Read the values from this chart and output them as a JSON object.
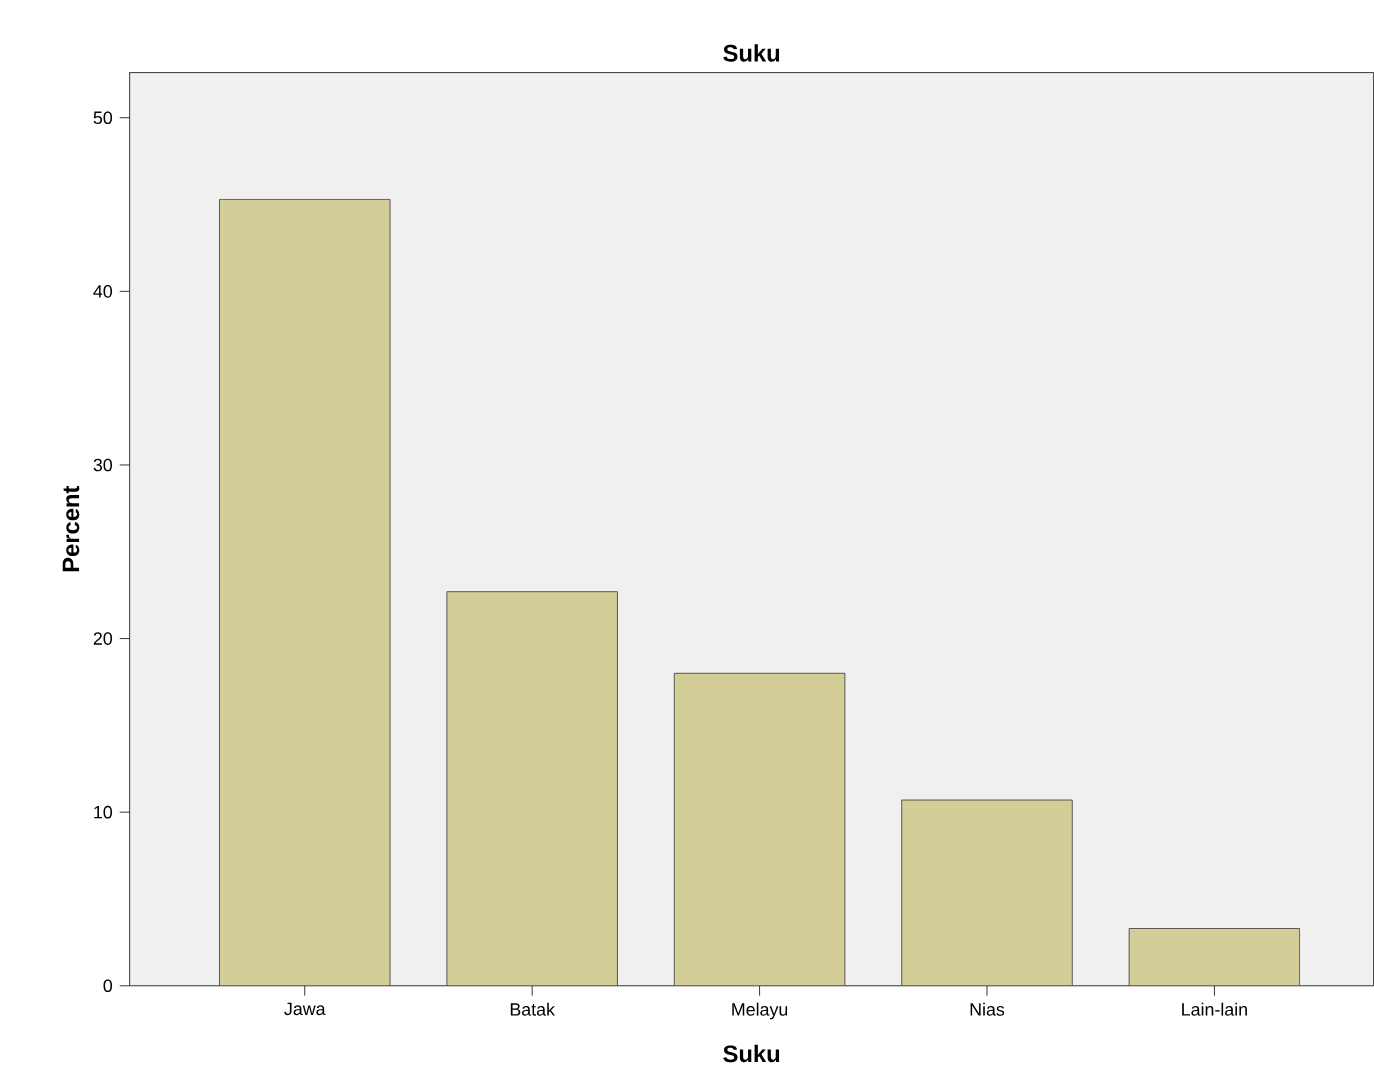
{
  "chart_data": {
    "type": "bar",
    "title": "Suku",
    "xlabel": "Suku",
    "ylabel": "Percent",
    "categories": [
      "Jawa",
      "Batak",
      "Melayu",
      "Nias",
      "Lain-lain"
    ],
    "values": [
      45.3,
      22.7,
      18.0,
      10.7,
      3.3
    ],
    "color": "#d3ce97",
    "ylim": [
      0,
      52.6
    ],
    "yticks": [
      0,
      10,
      20,
      30,
      40,
      50
    ]
  }
}
